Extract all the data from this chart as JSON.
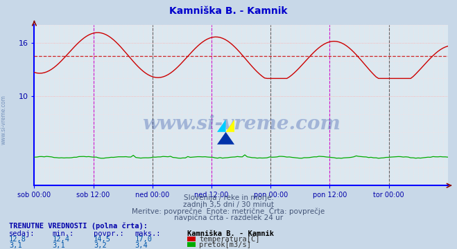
{
  "title": "Kamniška B. - Kamnik",
  "title_color": "#0000cc",
  "bg_color": "#c8d8e8",
  "plot_bg_color": "#dce8f0",
  "grid_color_major": "#ffaaaa",
  "grid_color_minor": "#ffdddd",
  "ylim": [
    7.5,
    18.0
  ],
  "ytick_vals": [
    10,
    16
  ],
  "ytick_labels": [
    "10",
    "16"
  ],
  "xlabel_ticks": [
    "sob 00:00",
    "sob 12:00",
    "ned 00:00",
    "ned 12:00",
    "pon 00:00",
    "pon 12:00",
    "tor 00:00"
  ],
  "n_points": 252,
  "temp_color": "#cc0000",
  "flow_color": "#00aa00",
  "avg_line_color": "#cc0000",
  "avg_temp": 14.5,
  "vline_midnight_color": "#444444",
  "vline_noon_color": "#cc00cc",
  "watermark_text": "www.si-vreme.com",
  "watermark_color": "#3355aa",
  "watermark_alpha": 0.35,
  "sub_text1": "Slovenija / reke in morje.",
  "sub_text2": "zadnjh 3,5 dni / 30 minut",
  "sub_text3": "Meritve: povprečne  Enote: metrične  Črta: povprečje",
  "sub_text4": "navpična črta - razdelek 24 ur",
  "table_header": "TRENUTNE VREDNOSTI (polna črta):",
  "col_headers": [
    "sedaj:",
    "min.:",
    "povpr.:",
    "maks.:"
  ],
  "temp_values": [
    "12,8",
    "12,4",
    "14,5",
    "17,0"
  ],
  "flow_values": [
    "3,1",
    "3,1",
    "3,2",
    "3,4"
  ],
  "station_label": "Kamniška B. - Kamnik",
  "temp_label": "temperatura[C]",
  "flow_label": "pretok[m3/s]",
  "axis_color": "#0000ff",
  "tick_label_color": "#0000aa"
}
